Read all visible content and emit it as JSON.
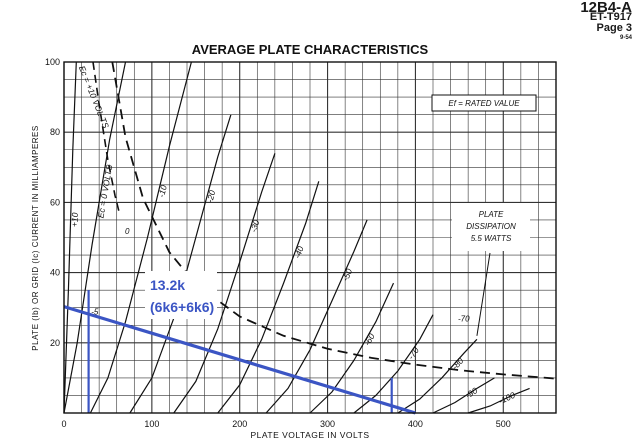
{
  "header": {
    "tube": "12B4-A",
    "code": "ET-T917",
    "page": "Page 3",
    "date": "9-54"
  },
  "chart_data": {
    "type": "line",
    "title": "AVERAGE PLATE CHARACTERISTICS",
    "xlabel": "PLATE VOLTAGE IN VOLTS",
    "ylabel": "PLATE (Ib) OR GRID (Ic) CURRENT IN MILLIAMPERES",
    "xlim": [
      0,
      560
    ],
    "ylim": [
      0,
      100
    ],
    "xticks": [
      "0",
      "100",
      "200",
      "300",
      "400",
      "500"
    ],
    "xtick_values": [
      0,
      100,
      200,
      300,
      400,
      500
    ],
    "yticks": [
      "20",
      "40",
      "60",
      "80",
      "100"
    ],
    "ytick_values": [
      20,
      40,
      60,
      80,
      100
    ],
    "grid": true,
    "legend_box": "Ef = RATED VALUE",
    "dissipation_label": [
      "PLATE",
      "DISSIPATION",
      "5.5 WATTS"
    ],
    "series": [
      {
        "name": "+10",
        "x": [
          0,
          5,
          10,
          14
        ],
        "y": [
          0,
          35,
          75,
          100
        ]
      },
      {
        "name": "Ec = 0 VOLTS",
        "x": [
          0,
          15,
          32,
          52,
          70
        ],
        "y": [
          0,
          20,
          48,
          78,
          100
        ]
      },
      {
        "name": "-10",
        "x": [
          30,
          50,
          70,
          95,
          120,
          145
        ],
        "y": [
          0,
          10,
          26,
          50,
          76,
          100
        ]
      },
      {
        "name": "-20",
        "x": [
          75,
          100,
          125,
          150,
          175,
          190
        ],
        "y": [
          0,
          10,
          27,
          50,
          73,
          85
        ]
      },
      {
        "name": "-30",
        "x": [
          125,
          150,
          175,
          200,
          225,
          240
        ],
        "y": [
          0,
          9,
          24,
          43,
          63,
          74
        ]
      },
      {
        "name": "-40",
        "x": [
          175,
          200,
          225,
          250,
          275,
          290
        ],
        "y": [
          0,
          8,
          21,
          37,
          54,
          66
        ]
      },
      {
        "name": "-50",
        "x": [
          230,
          255,
          280,
          305,
          330,
          345
        ],
        "y": [
          0,
          7,
          18,
          32,
          46,
          55
        ]
      },
      {
        "name": "-60",
        "x": [
          280,
          305,
          330,
          355,
          375
        ],
        "y": [
          0,
          6,
          15,
          26,
          37
        ]
      },
      {
        "name": "-70",
        "x": [
          330,
          355,
          380,
          405,
          420
        ],
        "y": [
          0,
          5,
          12,
          21,
          28
        ]
      },
      {
        "name": "-80",
        "x": [
          380,
          405,
          430,
          455,
          470
        ],
        "y": [
          0,
          4,
          10,
          17,
          21
        ]
      },
      {
        "name": "-90",
        "x": [
          420,
          445,
          470,
          490
        ],
        "y": [
          0,
          3,
          7,
          10
        ]
      },
      {
        "name": "-100",
        "x": [
          460,
          485,
          510,
          530
        ],
        "y": [
          0,
          2,
          5,
          7
        ]
      }
    ],
    "grid_curve": {
      "name": "Ec = +10 VOL TS",
      "x": [
        33,
        40,
        50,
        58,
        63
      ],
      "y": [
        100,
        88,
        72,
        62,
        57
      ]
    },
    "dissipation_curve": {
      "x": [
        55,
        70,
        90,
        120,
        150,
        200,
        250,
        300,
        350,
        400,
        450,
        500,
        560
      ],
      "y": [
        100,
        78.6,
        61.1,
        45.8,
        36.7,
        27.5,
        22,
        18.3,
        15.7,
        13.8,
        12.2,
        11,
        9.8
      ]
    },
    "load_line": {
      "label": "13.2k",
      "sublabel": "(6k6+6k6)",
      "x": [
        0,
        400
      ],
      "y": [
        30.3,
        0
      ]
    },
    "markers": [
      {
        "x": 28,
        "y": [
          0,
          35
        ]
      },
      {
        "x": 373,
        "y": [
          0,
          10
        ]
      }
    ],
    "small_labels": [
      "-5",
      "-70",
      "0"
    ]
  }
}
